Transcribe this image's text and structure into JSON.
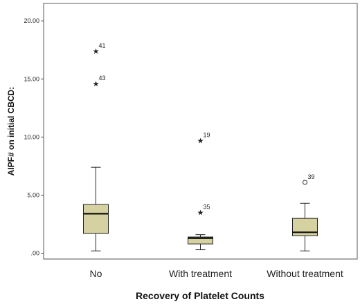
{
  "chart_data": {
    "type": "boxplot",
    "xlabel": "Recovery of Platelet Counts",
    "ylabel": "AIPF# on initial CBCD:",
    "ylim": [
      -0.5,
      21.5
    ],
    "yticks": [
      {
        "value": 0,
        "label": ".00"
      },
      {
        "value": 5,
        "label": "5.00"
      },
      {
        "value": 10,
        "label": "10.00"
      },
      {
        "value": 15,
        "label": "15.00"
      },
      {
        "value": 20,
        "label": "20.00"
      }
    ],
    "grid": false,
    "box_color": "#d6d1a0",
    "categories": [
      "No",
      "With treatment",
      "Without treatment"
    ],
    "boxes": [
      {
        "category": "No",
        "min": 0.2,
        "q1": 1.7,
        "median": 3.4,
        "q3": 4.2,
        "max": 7.4,
        "outliers": [
          {
            "value": 17.4,
            "label": "41",
            "marker": "star"
          },
          {
            "value": 14.6,
            "label": "43",
            "marker": "star"
          }
        ]
      },
      {
        "category": "With treatment",
        "min": 0.3,
        "q1": 0.8,
        "median": 1.3,
        "q3": 1.4,
        "max": 1.6,
        "outliers": [
          {
            "value": 9.7,
            "label": "19",
            "marker": "star"
          },
          {
            "value": 3.5,
            "label": "35",
            "marker": "star"
          }
        ]
      },
      {
        "category": "Without treatment",
        "min": 0.2,
        "q1": 1.5,
        "median": 1.8,
        "q3": 3.0,
        "max": 4.3,
        "outliers": [
          {
            "value": 6.1,
            "label": "39",
            "marker": "circle"
          }
        ]
      }
    ]
  }
}
